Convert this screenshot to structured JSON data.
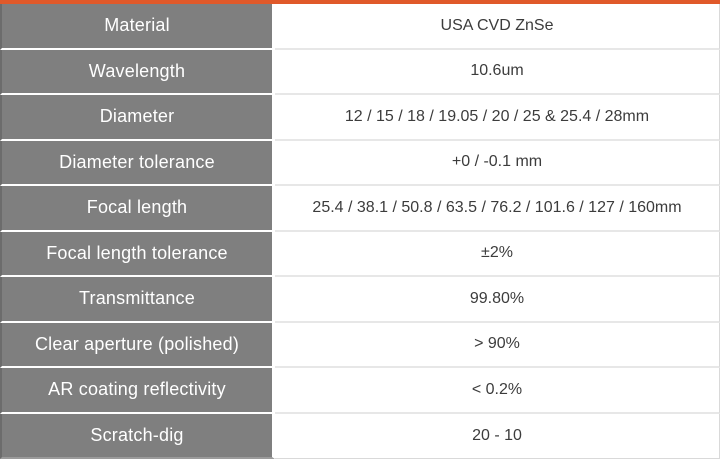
{
  "accent": {
    "top_bar_color": "#e0592a"
  },
  "table": {
    "colors": {
      "label_bg": "#7f7f7f",
      "label_text": "#ffffff",
      "value_text": "#3c3c3c",
      "grid_line": "#d9d9d9"
    },
    "rows": [
      {
        "label": "Material",
        "value": "USA CVD ZnSe"
      },
      {
        "label": "Wavelength",
        "value": "10.6um"
      },
      {
        "label": "Diameter",
        "value": "12 / 15 / 18 / 19.05 / 20 / 25 & 25.4 / 28mm"
      },
      {
        "label": "Diameter tolerance",
        "value": "+0 / -0.1 mm"
      },
      {
        "label": "Focal length",
        "value": "25.4 / 38.1 / 50.8 / 63.5 / 76.2 / 101.6 / 127 / 160mm"
      },
      {
        "label": "Focal length tolerance",
        "value": "±2%"
      },
      {
        "label": "Transmittance",
        "value": "99.80%"
      },
      {
        "label": "Clear aperture (polished)",
        "value": "> 90%"
      },
      {
        "label": "AR coating reflectivity",
        "value": "< 0.2%"
      },
      {
        "label": "Scratch-dig",
        "value": "20 - 10"
      }
    ]
  }
}
